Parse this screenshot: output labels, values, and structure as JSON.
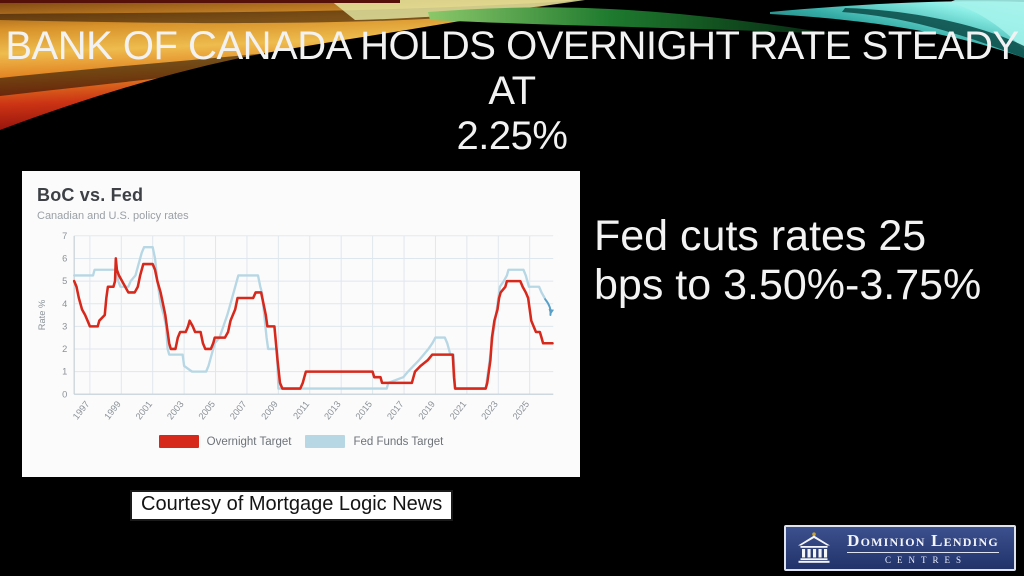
{
  "slide": {
    "title_line1": "BANK OF CANADA HOLDS OVERNIGHT RATE STEADY AT",
    "title_line2": "2.25%",
    "headline": "Fed cuts rates 25 bps to 3.50%-3.75%",
    "courtesy": "Courtesy of Mortgage Logic News"
  },
  "logo": {
    "name": "Dominion Lending",
    "subname": "CENTRES",
    "background_color": "#2b3e77",
    "icon": "bank-building-icon"
  },
  "chart_data": {
    "type": "line",
    "title": "BoC vs. Fed",
    "subtitle": "Canadian and U.S. policy rates",
    "ylabel": "Rate %",
    "xlabel": "",
    "ylim": [
      0,
      7
    ],
    "xlim": [
      1996,
      2026.5
    ],
    "y_ticks": [
      0,
      1,
      2,
      3,
      4,
      5,
      6,
      7
    ],
    "x_ticks": [
      1997,
      1999,
      2001,
      2003,
      2005,
      2007,
      2009,
      2011,
      2013,
      2015,
      2017,
      2019,
      2021,
      2023,
      2025
    ],
    "grid": true,
    "legend_position": "bottom",
    "grid_color": "#dfe7ee",
    "axis_color": "#c5d0d8",
    "tick_text_color": "#8a9197",
    "series": [
      {
        "name": "Overnight Target",
        "color": "#d7281c",
        "width": 2.6,
        "points": [
          [
            1996.0,
            5.0
          ],
          [
            1996.15,
            4.75
          ],
          [
            1996.3,
            4.25
          ],
          [
            1996.5,
            3.75
          ],
          [
            1996.7,
            3.5
          ],
          [
            1996.85,
            3.25
          ],
          [
            1997.0,
            3.0
          ],
          [
            1997.5,
            3.0
          ],
          [
            1997.6,
            3.25
          ],
          [
            1997.95,
            3.5
          ],
          [
            1998.05,
            4.25
          ],
          [
            1998.15,
            4.75
          ],
          [
            1998.5,
            4.75
          ],
          [
            1998.6,
            5.0
          ],
          [
            1998.65,
            6.0
          ],
          [
            1998.72,
            5.5
          ],
          [
            1998.85,
            5.25
          ],
          [
            1999.05,
            5.0
          ],
          [
            1999.25,
            4.75
          ],
          [
            1999.45,
            4.5
          ],
          [
            1999.85,
            4.5
          ],
          [
            2000.05,
            4.75
          ],
          [
            2000.2,
            5.25
          ],
          [
            2000.4,
            5.75
          ],
          [
            2001.0,
            5.75
          ],
          [
            2001.15,
            5.5
          ],
          [
            2001.3,
            5.0
          ],
          [
            2001.5,
            4.5
          ],
          [
            2001.65,
            4.0
          ],
          [
            2001.8,
            3.5
          ],
          [
            2001.95,
            2.75
          ],
          [
            2002.05,
            2.25
          ],
          [
            2002.15,
            2.0
          ],
          [
            2002.45,
            2.0
          ],
          [
            2002.6,
            2.5
          ],
          [
            2002.75,
            2.75
          ],
          [
            2003.1,
            2.75
          ],
          [
            2003.25,
            3.0
          ],
          [
            2003.35,
            3.25
          ],
          [
            2003.55,
            3.0
          ],
          [
            2003.7,
            2.75
          ],
          [
            2004.05,
            2.75
          ],
          [
            2004.2,
            2.25
          ],
          [
            2004.35,
            2.0
          ],
          [
            2004.7,
            2.0
          ],
          [
            2004.85,
            2.25
          ],
          [
            2004.95,
            2.5
          ],
          [
            2005.6,
            2.5
          ],
          [
            2005.8,
            2.75
          ],
          [
            2005.95,
            3.25
          ],
          [
            2006.1,
            3.5
          ],
          [
            2006.25,
            3.75
          ],
          [
            2006.4,
            4.25
          ],
          [
            2007.4,
            4.25
          ],
          [
            2007.55,
            4.5
          ],
          [
            2007.9,
            4.5
          ],
          [
            2008.05,
            4.0
          ],
          [
            2008.2,
            3.5
          ],
          [
            2008.3,
            3.0
          ],
          [
            2008.75,
            3.0
          ],
          [
            2008.85,
            2.25
          ],
          [
            2008.95,
            1.5
          ],
          [
            2009.1,
            0.5
          ],
          [
            2009.25,
            0.25
          ],
          [
            2010.4,
            0.25
          ],
          [
            2010.55,
            0.5
          ],
          [
            2010.65,
            0.75
          ],
          [
            2010.75,
            1.0
          ],
          [
            2015.0,
            1.0
          ],
          [
            2015.1,
            0.75
          ],
          [
            2015.5,
            0.75
          ],
          [
            2015.6,
            0.5
          ],
          [
            2017.5,
            0.5
          ],
          [
            2017.6,
            0.75
          ],
          [
            2017.7,
            1.0
          ],
          [
            2018.05,
            1.25
          ],
          [
            2018.5,
            1.5
          ],
          [
            2018.8,
            1.75
          ],
          [
            2020.1,
            1.75
          ],
          [
            2020.18,
            0.75
          ],
          [
            2020.25,
            0.25
          ],
          [
            2022.2,
            0.25
          ],
          [
            2022.3,
            0.5
          ],
          [
            2022.4,
            1.0
          ],
          [
            2022.5,
            1.5
          ],
          [
            2022.6,
            2.5
          ],
          [
            2022.75,
            3.25
          ],
          [
            2022.95,
            3.75
          ],
          [
            2023.05,
            4.25
          ],
          [
            2023.15,
            4.5
          ],
          [
            2023.45,
            4.75
          ],
          [
            2023.55,
            5.0
          ],
          [
            2024.4,
            5.0
          ],
          [
            2024.55,
            4.75
          ],
          [
            2024.75,
            4.5
          ],
          [
            2024.9,
            4.25
          ],
          [
            2025.0,
            3.75
          ],
          [
            2025.1,
            3.25
          ],
          [
            2025.25,
            3.0
          ],
          [
            2025.4,
            2.75
          ],
          [
            2025.65,
            2.75
          ],
          [
            2025.75,
            2.5
          ],
          [
            2025.85,
            2.25
          ],
          [
            2026.45,
            2.25
          ]
        ]
      },
      {
        "name": "Fed Funds Target",
        "color": "#b7d7e5",
        "width": 2.4,
        "points": [
          [
            1996.0,
            5.25
          ],
          [
            1997.2,
            5.25
          ],
          [
            1997.3,
            5.5
          ],
          [
            1998.7,
            5.5
          ],
          [
            1998.8,
            5.0
          ],
          [
            1998.95,
            4.75
          ],
          [
            1999.45,
            4.75
          ],
          [
            1999.6,
            5.0
          ],
          [
            1999.9,
            5.25
          ],
          [
            2000.1,
            5.75
          ],
          [
            2000.3,
            6.25
          ],
          [
            2000.45,
            6.5
          ],
          [
            2001.0,
            6.5
          ],
          [
            2001.15,
            6.0
          ],
          [
            2001.3,
            5.0
          ],
          [
            2001.5,
            4.0
          ],
          [
            2001.7,
            3.5
          ],
          [
            2001.85,
            3.0
          ],
          [
            2001.95,
            2.0
          ],
          [
            2002.05,
            1.75
          ],
          [
            2002.9,
            1.75
          ],
          [
            2003.0,
            1.25
          ],
          [
            2003.5,
            1.0
          ],
          [
            2004.4,
            1.0
          ],
          [
            2004.55,
            1.25
          ],
          [
            2004.75,
            1.75
          ],
          [
            2004.95,
            2.25
          ],
          [
            2005.25,
            2.5
          ],
          [
            2005.5,
            3.0
          ],
          [
            2005.75,
            3.5
          ],
          [
            2005.95,
            4.0
          ],
          [
            2006.15,
            4.5
          ],
          [
            2006.45,
            5.25
          ],
          [
            2007.7,
            5.25
          ],
          [
            2007.85,
            4.75
          ],
          [
            2007.95,
            4.5
          ],
          [
            2008.1,
            3.5
          ],
          [
            2008.25,
            2.5
          ],
          [
            2008.35,
            2.0
          ],
          [
            2008.9,
            2.0
          ],
          [
            2009.0,
            0.25
          ],
          [
            2015.9,
            0.25
          ],
          [
            2016.0,
            0.5
          ],
          [
            2016.95,
            0.75
          ],
          [
            2017.25,
            1.0
          ],
          [
            2017.6,
            1.25
          ],
          [
            2017.95,
            1.5
          ],
          [
            2018.25,
            1.75
          ],
          [
            2018.55,
            2.0
          ],
          [
            2018.8,
            2.25
          ],
          [
            2019.0,
            2.5
          ],
          [
            2019.6,
            2.5
          ],
          [
            2019.75,
            2.25
          ],
          [
            2019.85,
            2.0
          ],
          [
            2019.95,
            1.75
          ],
          [
            2020.15,
            1.75
          ],
          [
            2020.25,
            0.25
          ],
          [
            2022.2,
            0.25
          ],
          [
            2022.35,
            1.0
          ],
          [
            2022.5,
            1.75
          ],
          [
            2022.65,
            2.5
          ],
          [
            2022.8,
            3.25
          ],
          [
            2022.95,
            4.0
          ],
          [
            2023.1,
            4.75
          ],
          [
            2023.35,
            5.0
          ],
          [
            2023.55,
            5.25
          ],
          [
            2023.65,
            5.5
          ],
          [
            2024.6,
            5.5
          ],
          [
            2024.75,
            5.25
          ],
          [
            2024.85,
            5.0
          ],
          [
            2024.95,
            4.75
          ],
          [
            2025.6,
            4.75
          ],
          [
            2025.75,
            4.5
          ],
          [
            2025.95,
            4.25
          ]
        ]
      }
    ],
    "annotation": {
      "type": "arrow",
      "meaning": "direction of latest Fed cut",
      "from": [
        2025.98,
        4.2
      ],
      "to": [
        2026.32,
        3.5
      ],
      "color": "#58a0c8"
    }
  }
}
